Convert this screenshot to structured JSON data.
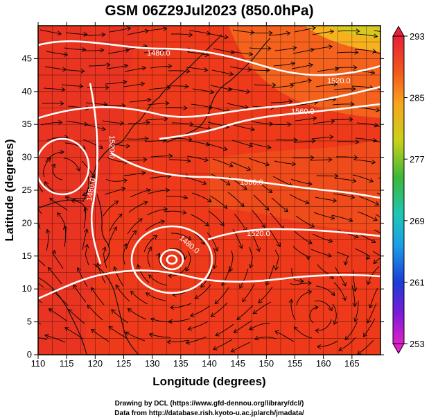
{
  "title": "GSM 06Z29Jul2023 (850.0hPa)",
  "x_axis": {
    "label": "Longitude (degrees)",
    "ticks": [
      110,
      115,
      120,
      125,
      130,
      135,
      140,
      145,
      150,
      155,
      160,
      165
    ],
    "range": [
      110,
      170
    ]
  },
  "y_axis": {
    "label": "Latitude (degrees)",
    "ticks": [
      0,
      5,
      10,
      15,
      20,
      25,
      30,
      35,
      40,
      45
    ],
    "range": [
      0,
      50
    ]
  },
  "colorbar": {
    "ticks": [
      "293",
      "285",
      "277",
      "269",
      "261",
      "253"
    ],
    "range": [
      253,
      293
    ]
  },
  "contours": [
    {
      "label": "1480.0"
    },
    {
      "label": "1520.0"
    },
    {
      "label": "1560.0"
    },
    {
      "label": "1560.0"
    },
    {
      "label": "1520.0"
    },
    {
      "label": "1480.0"
    },
    {
      "label": "1520.0"
    },
    {
      "label": "1480.0"
    }
  ],
  "credits": {
    "line1": "Drawing by DCL (https://www.gfd-dennou.org/library/dcl/)",
    "line2": "Data from http://database.rish.kyoto-u.ac.jp/arch/jmadata/"
  },
  "colors": {
    "field_main": "#ee3a1a",
    "field_warm": "#f46a1e",
    "field_cool": "#f7b11f",
    "contour": "#ffffff",
    "streamline": "#000000"
  }
}
